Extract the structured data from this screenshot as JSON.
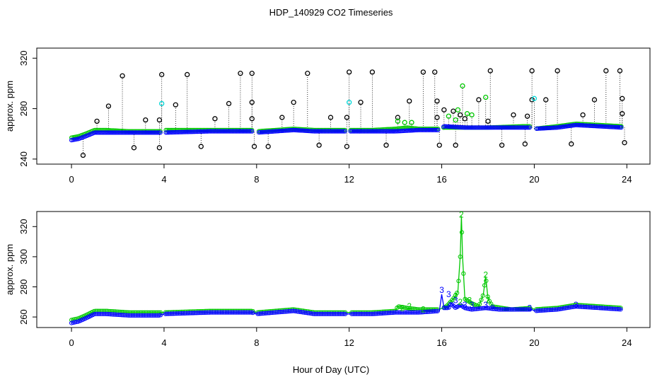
{
  "title": "HDP_140929  CO2 Timeseries",
  "xlabel": "Hour of Day (UTC)",
  "colors": {
    "black": "#000000",
    "green": "#00c800",
    "blue": "#0000ff",
    "cyan": "#00d8d8"
  },
  "chart_data": [
    {
      "type": "scatter",
      "panel": "top",
      "ylabel": "approx. ppm",
      "xlim": [
        -1.5,
        25
      ],
      "ylim": [
        236,
        328
      ],
      "x_ticks": [
        0,
        4,
        8,
        12,
        16,
        20,
        24
      ],
      "y_ticks": [
        240,
        280,
        320
      ],
      "y_tick_labels": [
        "240",
        "280",
        "320"
      ],
      "grid": false,
      "baseline_series": [
        {
          "name": "",
          "color": "green",
          "points": [
            [
              0.0,
              257
            ],
            [
              0.3,
              258
            ],
            [
              0.6,
              260
            ],
            [
              1.0,
              263
            ],
            [
              1.5,
              263
            ],
            [
              2.5,
              262
            ],
            [
              3.8,
              262
            ],
            [
              4.0,
              263
            ],
            [
              6.0,
              263
            ],
            [
              7.8,
              263
            ],
            [
              8.0,
              262
            ],
            [
              9.6,
              264
            ],
            [
              10.5,
              263
            ],
            [
              12.0,
              263
            ],
            [
              13.0,
              263
            ],
            [
              14.0,
              264
            ],
            [
              14.5,
              265
            ],
            [
              15.0,
              264
            ],
            [
              15.9,
              264
            ],
            [
              16.1,
              265
            ],
            [
              17.0,
              265
            ],
            [
              18.0,
              265
            ],
            [
              19.5,
              266
            ],
            [
              19.9,
              266
            ],
            [
              20.0,
              264
            ],
            [
              21.0,
              266
            ],
            [
              21.8,
              268
            ],
            [
              23.8,
              266
            ]
          ]
        },
        {
          "name": "",
          "color": "blue",
          "points": [
            [
              0.0,
              255
            ],
            [
              0.3,
              256
            ],
            [
              0.6,
              258
            ],
            [
              1.0,
              261
            ],
            [
              1.5,
              261
            ],
            [
              2.5,
              261
            ],
            [
              3.8,
              261
            ],
            [
              4.0,
              261
            ],
            [
              6.0,
              262
            ],
            [
              7.8,
              262
            ],
            [
              8.0,
              261
            ],
            [
              9.6,
              263
            ],
            [
              10.5,
              262
            ],
            [
              12.0,
              262
            ],
            [
              13.0,
              262
            ],
            [
              14.0,
              262
            ],
            [
              15.0,
              263
            ],
            [
              15.9,
              263
            ],
            [
              16.1,
              266
            ],
            [
              17.0,
              265
            ],
            [
              18.0,
              265
            ],
            [
              19.5,
              265
            ],
            [
              19.9,
              265
            ],
            [
              20.0,
              264
            ],
            [
              21.0,
              265
            ],
            [
              21.8,
              267
            ],
            [
              23.8,
              265
            ]
          ]
        }
      ],
      "spikes": [
        {
          "x": 0.5,
          "y": 243
        },
        {
          "x": 1.1,
          "y": 270
        },
        {
          "x": 1.6,
          "y": 282
        },
        {
          "x": 2.2,
          "y": 306
        },
        {
          "x": 2.7,
          "y": 249
        },
        {
          "x": 3.2,
          "y": 271
        },
        {
          "x": 3.8,
          "y": 249
        },
        {
          "x": 3.8,
          "y": 271
        },
        {
          "x": 3.9,
          "y": 307
        },
        {
          "x": 3.9,
          "y": 284,
          "color": "cyan"
        },
        {
          "x": 4.5,
          "y": 283
        },
        {
          "x": 5.0,
          "y": 307
        },
        {
          "x": 5.6,
          "y": 250
        },
        {
          "x": 6.2,
          "y": 272
        },
        {
          "x": 6.8,
          "y": 284
        },
        {
          "x": 7.3,
          "y": 308
        },
        {
          "x": 7.8,
          "y": 308
        },
        {
          "x": 7.8,
          "y": 285
        },
        {
          "x": 7.8,
          "y": 272
        },
        {
          "x": 7.9,
          "y": 250
        },
        {
          "x": 8.5,
          "y": 250
        },
        {
          "x": 9.1,
          "y": 273
        },
        {
          "x": 9.6,
          "y": 285
        },
        {
          "x": 10.2,
          "y": 308
        },
        {
          "x": 10.7,
          "y": 251
        },
        {
          "x": 11.2,
          "y": 273
        },
        {
          "x": 11.9,
          "y": 250
        },
        {
          "x": 11.9,
          "y": 273
        },
        {
          "x": 12.0,
          "y": 309
        },
        {
          "x": 12.0,
          "y": 285,
          "color": "cyan"
        },
        {
          "x": 12.5,
          "y": 285
        },
        {
          "x": 13.0,
          "y": 309
        },
        {
          "x": 13.6,
          "y": 251
        },
        {
          "x": 14.1,
          "y": 273
        },
        {
          "x": 14.6,
          "y": 286
        },
        {
          "x": 15.2,
          "y": 309
        },
        {
          "x": 15.7,
          "y": 309
        },
        {
          "x": 15.8,
          "y": 286
        },
        {
          "x": 15.8,
          "y": 273
        },
        {
          "x": 15.9,
          "y": 251
        },
        {
          "x": 16.1,
          "y": 279
        },
        {
          "x": 16.5,
          "y": 278
        },
        {
          "x": 16.6,
          "y": 251
        },
        {
          "x": 16.8,
          "y": 275
        },
        {
          "x": 17.0,
          "y": 272
        },
        {
          "x": 17.6,
          "y": 287
        },
        {
          "x": 18.0,
          "y": 270
        },
        {
          "x": 18.1,
          "y": 310
        },
        {
          "x": 18.6,
          "y": 251
        },
        {
          "x": 19.1,
          "y": 275
        },
        {
          "x": 19.6,
          "y": 252
        },
        {
          "x": 19.7,
          "y": 274
        },
        {
          "x": 19.9,
          "y": 310
        },
        {
          "x": 19.9,
          "y": 287
        },
        {
          "x": 20.0,
          "y": 288,
          "color": "cyan"
        },
        {
          "x": 20.5,
          "y": 287
        },
        {
          "x": 21.0,
          "y": 310
        },
        {
          "x": 21.6,
          "y": 252
        },
        {
          "x": 22.1,
          "y": 275
        },
        {
          "x": 22.6,
          "y": 287
        },
        {
          "x": 23.1,
          "y": 310
        },
        {
          "x": 23.7,
          "y": 310
        },
        {
          "x": 23.8,
          "y": 288
        },
        {
          "x": 23.8,
          "y": 276
        },
        {
          "x": 23.9,
          "y": 253
        },
        {
          "x": 14.1,
          "y": 270,
          "color": "green"
        },
        {
          "x": 14.4,
          "y": 269,
          "color": "green"
        },
        {
          "x": 14.7,
          "y": 269,
          "color": "green"
        },
        {
          "x": 16.3,
          "y": 274,
          "color": "green"
        },
        {
          "x": 16.6,
          "y": 271,
          "color": "green"
        },
        {
          "x": 16.7,
          "y": 279,
          "color": "green"
        },
        {
          "x": 16.9,
          "y": 298,
          "color": "green"
        },
        {
          "x": 17.1,
          "y": 276,
          "color": "green"
        },
        {
          "x": 17.3,
          "y": 275,
          "color": "green"
        },
        {
          "x": 17.9,
          "y": 289,
          "color": "green"
        }
      ]
    },
    {
      "type": "line",
      "panel": "bottom",
      "ylabel": "approx. ppm",
      "xlim": [
        -1.5,
        25
      ],
      "ylim": [
        253,
        330
      ],
      "x_ticks": [
        0,
        4,
        8,
        12,
        16,
        20,
        24
      ],
      "y_ticks": [
        260,
        280,
        300,
        320
      ],
      "y_tick_labels": [
        "260",
        "280",
        "300",
        "320"
      ],
      "grid": false,
      "series": [
        {
          "name": "",
          "color": "green",
          "points": [
            [
              0.0,
              258
            ],
            [
              0.3,
              259
            ],
            [
              0.6,
              261
            ],
            [
              1.0,
              264
            ],
            [
              1.5,
              264
            ],
            [
              2.5,
              263
            ],
            [
              3.8,
              263
            ],
            [
              4.0,
              263
            ],
            [
              6.0,
              264
            ],
            [
              7.8,
              264
            ],
            [
              8.0,
              263
            ],
            [
              9.6,
              265
            ],
            [
              10.5,
              263
            ],
            [
              12.0,
              263
            ],
            [
              13.0,
              263
            ],
            [
              14.0,
              264
            ],
            [
              14.1,
              267
            ],
            [
              14.5,
              266
            ],
            [
              15.0,
              265
            ],
            [
              15.9,
              265
            ],
            [
              16.2,
              267
            ],
            [
              16.5,
              272
            ],
            [
              16.7,
              277
            ],
            [
              16.8,
              300
            ],
            [
              16.85,
              327
            ],
            [
              16.9,
              300
            ],
            [
              17.0,
              272
            ],
            [
              17.3,
              269
            ],
            [
              17.6,
              267
            ],
            [
              17.8,
              275
            ],
            [
              17.9,
              287
            ],
            [
              18.0,
              272
            ],
            [
              18.2,
              267
            ],
            [
              19.0,
              265
            ],
            [
              19.9,
              266
            ],
            [
              20.0,
              265
            ],
            [
              21.0,
              266
            ],
            [
              21.4,
              267
            ],
            [
              21.8,
              268
            ],
            [
              23.8,
              266
            ]
          ]
        },
        {
          "name": "",
          "color": "blue",
          "points": [
            [
              0.0,
              256
            ],
            [
              0.3,
              257
            ],
            [
              0.6,
              259
            ],
            [
              1.0,
              262
            ],
            [
              1.5,
              262
            ],
            [
              2.5,
              261
            ],
            [
              3.8,
              261
            ],
            [
              4.0,
              262
            ],
            [
              6.0,
              263
            ],
            [
              7.8,
              263
            ],
            [
              8.0,
              262
            ],
            [
              9.6,
              264
            ],
            [
              10.5,
              262
            ],
            [
              12.0,
              262
            ],
            [
              13.0,
              262
            ],
            [
              14.0,
              263
            ],
            [
              15.0,
              263
            ],
            [
              15.9,
              264
            ],
            [
              16.0,
              275
            ],
            [
              16.1,
              266
            ],
            [
              16.3,
              266
            ],
            [
              16.4,
              269
            ],
            [
              16.6,
              266
            ],
            [
              16.8,
              268
            ],
            [
              17.0,
              266
            ],
            [
              17.3,
              265
            ],
            [
              17.9,
              266
            ],
            [
              18.5,
              265
            ],
            [
              19.5,
              265
            ],
            [
              19.9,
              265
            ],
            [
              20.0,
              264
            ],
            [
              21.0,
              265
            ],
            [
              21.8,
              267
            ],
            [
              23.8,
              265
            ]
          ]
        }
      ],
      "annotations": [
        {
          "text": "2",
          "x": 14.3,
          "y": 266,
          "color": "green"
        },
        {
          "text": "2",
          "x": 14.6,
          "y": 267,
          "color": "green"
        },
        {
          "text": "2",
          "x": 15.2,
          "y": 265,
          "color": "green"
        },
        {
          "text": "2",
          "x": 16.6,
          "y": 274,
          "color": "green"
        },
        {
          "text": "2",
          "x": 16.8,
          "y": 270,
          "color": "green"
        },
        {
          "text": "2",
          "x": 16.85,
          "y": 328,
          "color": "green"
        },
        {
          "text": "3",
          "x": 17.2,
          "y": 271,
          "color": "green"
        },
        {
          "text": "2",
          "x": 17.9,
          "y": 288,
          "color": "green"
        },
        {
          "text": "2",
          "x": 18.0,
          "y": 271,
          "color": "green"
        },
        {
          "text": "3",
          "x": 16.0,
          "y": 278,
          "color": "blue"
        },
        {
          "text": "3",
          "x": 16.3,
          "y": 275,
          "color": "blue"
        },
        {
          "text": "3",
          "x": 16.6,
          "y": 271,
          "color": "blue"
        },
        {
          "text": "3",
          "x": 17.0,
          "y": 268,
          "color": "blue"
        },
        {
          "text": "3",
          "x": 17.3,
          "y": 268,
          "color": "blue"
        },
        {
          "text": "3",
          "x": 17.9,
          "y": 268,
          "color": "blue"
        },
        {
          "text": "3",
          "x": 18.2,
          "y": 266,
          "color": "blue"
        },
        {
          "text": "3",
          "x": 19.8,
          "y": 266,
          "color": "blue"
        },
        {
          "text": "3",
          "x": 21.8,
          "y": 268,
          "color": "blue"
        }
      ]
    }
  ]
}
